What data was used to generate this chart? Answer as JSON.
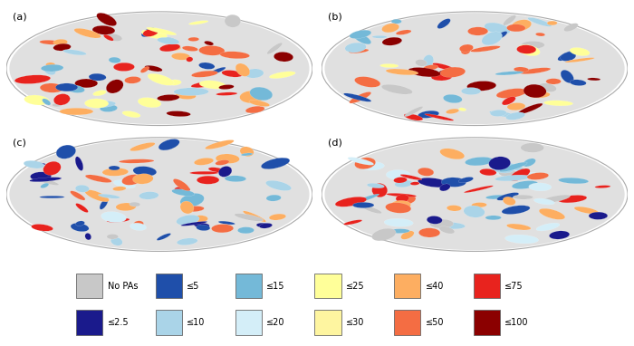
{
  "panel_labels": [
    "(a)",
    "(b)",
    "(c)",
    "(d)"
  ],
  "legend_row1": [
    {
      "color": "#c8c8c8",
      "label": "No PAs"
    },
    {
      "color": "#1f4faa",
      "label": "≤5"
    },
    {
      "color": "#74b9d8",
      "label": "≤15"
    },
    {
      "color": "#ffff99",
      "label": "≤25"
    },
    {
      "color": "#fdae61",
      "label": "≤40"
    },
    {
      "color": "#e8231e",
      "label": "≤75"
    }
  ],
  "legend_row2": [
    {
      "color": "#1a1a8c",
      "label": "≤2.5"
    },
    {
      "color": "#aad4e8",
      "label": "≤10"
    },
    {
      "color": "#d4eef8",
      "label": "≤20"
    },
    {
      "color": "#fef5a0",
      "label": "≤30"
    },
    {
      "color": "#f46d43",
      "label": "≤50"
    },
    {
      "color": "#8b0000",
      "label": "≤100"
    }
  ],
  "fig_bg": "#ffffff",
  "globe_edge_color": "#aaaaaa",
  "ocean_color": "#ffffff",
  "land_bg_color": "#e0e0e0"
}
